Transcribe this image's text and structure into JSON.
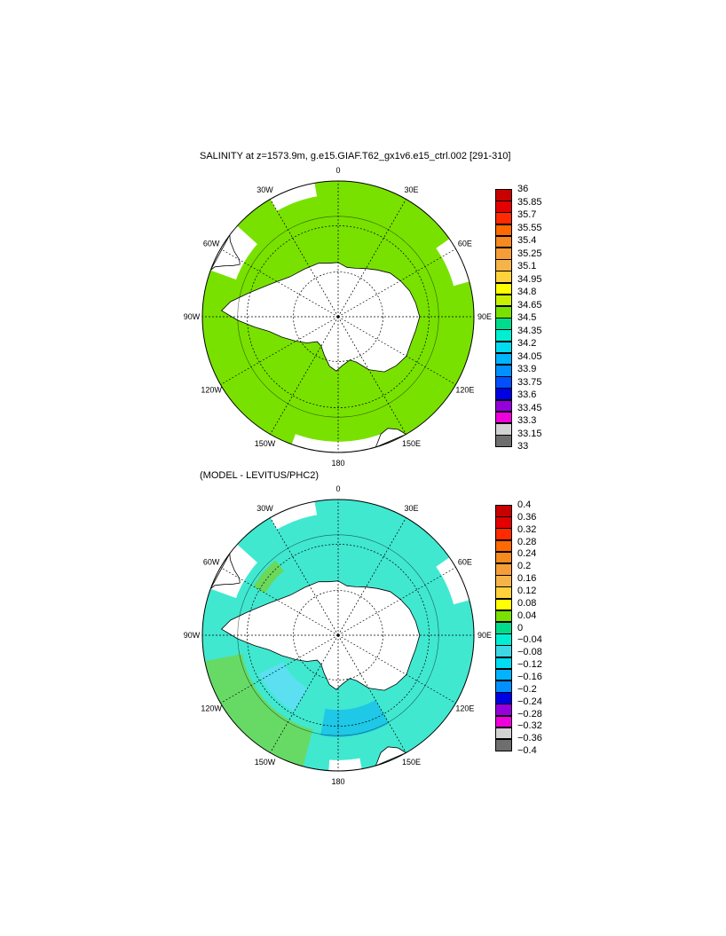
{
  "top_panel": {
    "title": "SALINITY at z=1573.9m, g.e15.GIAF.T62_gx1v6.e15_ctrl.002 [291-310]",
    "lon_labels": [
      "0",
      "30E",
      "60E",
      "90E",
      "120E",
      "150E",
      "180",
      "150W",
      "120W",
      "90W",
      "60W",
      "30W"
    ],
    "colorbar": {
      "labels": [
        "36",
        "35.85",
        "35.7",
        "35.55",
        "35.4",
        "35.25",
        "35.1",
        "34.95",
        "34.8",
        "34.65",
        "34.5",
        "34.35",
        "34.2",
        "34.05",
        "33.9",
        "33.75",
        "33.6",
        "33.45",
        "33.3",
        "33.15",
        "33"
      ],
      "colors": [
        "#c80000",
        "#e40000",
        "#ff2a00",
        "#ff6a00",
        "#f58a1e",
        "#f59e37",
        "#f5b44a",
        "#ffd23c",
        "#ffff00",
        "#c8f000",
        "#78e100",
        "#00dc8c",
        "#00eed2",
        "#00dcf0",
        "#00b4ff",
        "#0090ff",
        "#0050ff",
        "#0000e6",
        "#9600dc",
        "#f000dc",
        "#d2d2d2",
        "#6e6e6e"
      ]
    }
  },
  "bottom_panel": {
    "title": "(MODEL - LEVITUS/PHC2)",
    "lon_labels": [
      "0",
      "30E",
      "60E",
      "90E",
      "120E",
      "150E",
      "180",
      "150W",
      "120W",
      "90W",
      "60W",
      "30W"
    ],
    "colorbar": {
      "labels": [
        "0.4",
        "0.36",
        "0.32",
        "0.28",
        "0.24",
        "0.2",
        "0.16",
        "0.12",
        "0.08",
        "0.04",
        "0",
        "−0.04",
        "−0.08",
        "−0.12",
        "−0.16",
        "−0.2",
        "−0.24",
        "−0.28",
        "−0.32",
        "−0.36",
        "−0.4"
      ],
      "colors": [
        "#c80000",
        "#e40000",
        "#ff2a00",
        "#ff6a00",
        "#f58a1e",
        "#f59e37",
        "#f5b44a",
        "#ffd23c",
        "#ffff00",
        "#78e100",
        "#00dc8c",
        "#00eed2",
        "#3cd8e6",
        "#00dcf0",
        "#00b4ff",
        "#0090ff",
        "#0000e6",
        "#9600dc",
        "#f000dc",
        "#d2d2d2",
        "#6e6e6e"
      ]
    }
  },
  "colors": {
    "top_ocean": "#78e100",
    "top_light_patch": "#a0e84a",
    "bottom_ocean": "#40e8d0",
    "bottom_green": "#6bd85a",
    "bottom_cyan": "#1ec8e6",
    "land": "#ffffff",
    "coast": "#000000"
  }
}
